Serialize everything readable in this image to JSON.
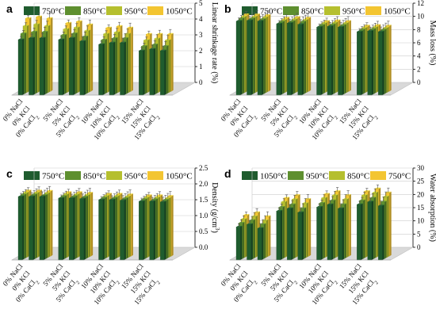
{
  "chart_data": [
    {
      "panel": "a",
      "type": "bar",
      "ylabel": "Linear shrinkage rate (%)",
      "ylim": [
        0,
        5
      ],
      "yticks": [
        0,
        1,
        2,
        3,
        4,
        5
      ],
      "categories": [
        "0% NaCl",
        "0% KCl",
        "0% CaCl2",
        "5% NaCl",
        "5% KCl",
        "5% CaCl2",
        "10% NaCl",
        "10% KCl",
        "10% CaCl2",
        "15% NaCl",
        "15% KCl",
        "15% CaCl2"
      ],
      "series": [
        {
          "name": "750°C",
          "color": "#1f5c2e",
          "values": [
            3.5,
            3.6,
            3.6,
            3.5,
            3.6,
            3.4,
            3.2,
            3.3,
            3.3,
            2.8,
            2.9,
            2.8
          ]
        },
        {
          "name": "850°C",
          "color": "#5e8f2f",
          "values": [
            3.8,
            3.9,
            3.9,
            3.7,
            3.8,
            3.6,
            3.4,
            3.5,
            3.5,
            3.0,
            3.1,
            3.0
          ]
        },
        {
          "name": "950°C",
          "color": "#b5bf2e",
          "values": [
            4.2,
            4.3,
            4.2,
            4.0,
            4.1,
            3.9,
            3.7,
            3.8,
            3.7,
            3.3,
            3.4,
            3.3
          ]
        },
        {
          "name": "1050°C",
          "color": "#f3c531",
          "values": [
            4.6,
            4.7,
            4.6,
            4.3,
            4.4,
            4.2,
            4.0,
            4.1,
            4.0,
            3.6,
            3.6,
            3.6
          ]
        }
      ]
    },
    {
      "panel": "b",
      "type": "bar",
      "ylabel": "Mass loss (%)",
      "ylim": [
        0,
        12
      ],
      "yticks": [
        0,
        2,
        4,
        6,
        8,
        10,
        12
      ],
      "categories": [
        "0% NaCl",
        "0% KCl",
        "0% CaCl2",
        "5% NaCl",
        "5% KCl",
        "5% CaCl2",
        "10% NaCl",
        "10% KCl",
        "10% CaCl2",
        "15% NaCl",
        "15% KCl",
        "15% CaCl2"
      ],
      "series": [
        {
          "name": "750°C",
          "color": "#1f5c2e",
          "values": [
            11.2,
            11.3,
            11.2,
            10.8,
            10.9,
            10.7,
            10.3,
            10.4,
            10.3,
            9.6,
            9.7,
            9.6
          ]
        },
        {
          "name": "850°C",
          "color": "#5e8f2f",
          "values": [
            11.4,
            11.4,
            11.3,
            10.9,
            11.0,
            10.9,
            10.4,
            10.5,
            10.4,
            9.7,
            9.8,
            9.7
          ]
        },
        {
          "name": "950°C",
          "color": "#b5bf2e",
          "values": [
            11.5,
            11.5,
            11.4,
            11.0,
            11.1,
            11.0,
            10.5,
            10.6,
            10.5,
            9.8,
            9.9,
            9.8
          ]
        },
        {
          "name": "1050°C",
          "color": "#f3c531",
          "values": [
            11.6,
            11.6,
            11.5,
            11.1,
            11.2,
            11.1,
            10.6,
            10.7,
            10.6,
            9.9,
            10.0,
            9.9
          ]
        }
      ]
    },
    {
      "panel": "c",
      "type": "bar",
      "ylabel": "Density (g/cm³)",
      "ylim": [
        0,
        2.5
      ],
      "yticks": [
        0,
        0.5,
        1.0,
        1.5,
        2.0,
        2.5
      ],
      "categories": [
        "0% NaCl",
        "0% KCl",
        "0% CaCl2",
        "5% NaCl",
        "5% KCl",
        "5% CaCl2",
        "10% NaCl",
        "10% KCl",
        "10% CaCl2",
        "15% NaCl",
        "15% KCl",
        "15% CaCl2"
      ],
      "series": [
        {
          "name": "750°C",
          "color": "#1f5c2e",
          "values": [
            2.0,
            2.0,
            2.0,
            1.95,
            1.95,
            1.93,
            1.9,
            1.9,
            1.88,
            1.85,
            1.85,
            1.83
          ]
        },
        {
          "name": "850°C",
          "color": "#5e8f2f",
          "values": [
            2.02,
            2.02,
            2.01,
            1.97,
            1.97,
            1.95,
            1.92,
            1.92,
            1.9,
            1.87,
            1.87,
            1.85
          ]
        },
        {
          "name": "950°C",
          "color": "#b5bf2e",
          "values": [
            2.04,
            2.04,
            2.03,
            1.99,
            1.99,
            1.97,
            1.94,
            1.94,
            1.92,
            1.89,
            1.89,
            1.87
          ]
        },
        {
          "name": "1050°C",
          "color": "#f3c531",
          "values": [
            2.06,
            2.06,
            2.05,
            2.01,
            2.01,
            1.99,
            1.96,
            1.96,
            1.94,
            1.91,
            1.91,
            1.89
          ]
        }
      ]
    },
    {
      "panel": "d",
      "type": "bar",
      "ylabel": "Water absorption (%)",
      "ylim": [
        0,
        30
      ],
      "yticks": [
        0,
        5,
        10,
        15,
        20,
        25,
        30
      ],
      "categories": [
        "0% NaCl",
        "0% KCl",
        "0% CaCl2",
        "5% NaCl",
        "5% KCl",
        "5% CaCl2",
        "10% NaCl",
        "10% KCl",
        "10% CaCl2",
        "15% NaCl",
        "15% KCl",
        "15% CaCl2"
      ],
      "series": [
        {
          "name": "1050°C",
          "color": "#1f5c2e",
          "values": [
            12.5,
            13.5,
            12.0,
            18.5,
            19.5,
            18.0,
            20.0,
            21.0,
            19.5,
            21.0,
            22.0,
            20.5
          ]
        },
        {
          "name": "950°C",
          "color": "#5e8f2f",
          "values": [
            13.5,
            14.5,
            13.0,
            19.5,
            20.5,
            19.0,
            21.0,
            22.0,
            20.5,
            22.0,
            23.0,
            21.5
          ]
        },
        {
          "name": "850°C",
          "color": "#b5bf2e",
          "values": [
            14.5,
            15.5,
            14.0,
            21.0,
            22.0,
            20.5,
            22.5,
            23.5,
            22.0,
            23.5,
            24.5,
            23.0
          ]
        },
        {
          "name": "750°C",
          "color": "#f3c531",
          "values": [
            15.5,
            16.5,
            15.0,
            22.0,
            23.0,
            21.5,
            23.5,
            24.5,
            23.0,
            24.5,
            25.5,
            24.0
          ]
        }
      ]
    }
  ],
  "category_labels": [
    [
      "0% NaCl",
      ""
    ],
    [
      "0% KCl",
      ""
    ],
    [
      "0% CaCl",
      "2"
    ],
    [
      "5% NaCl",
      ""
    ],
    [
      "5% KCl",
      ""
    ],
    [
      "5% CaCl",
      "2"
    ],
    [
      "10% NaCl",
      ""
    ],
    [
      "10% KCl",
      ""
    ],
    [
      "10% CaCl",
      "2"
    ],
    [
      "15% NaCl",
      ""
    ],
    [
      "15% KCl",
      ""
    ],
    [
      "15% CaCl",
      "2"
    ]
  ]
}
